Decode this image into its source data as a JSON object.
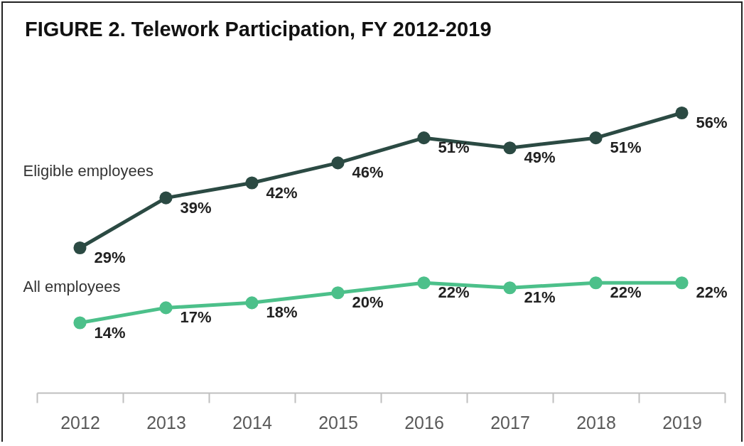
{
  "chart_data": {
    "type": "line",
    "title": "FIGURE 2. Telework Participation, FY 2012-2019",
    "categories": [
      "2012",
      "2013",
      "2014",
      "2015",
      "2016",
      "2017",
      "2018",
      "2019"
    ],
    "series": [
      {
        "name": "Eligible employees",
        "color": "#2b4a43",
        "values": [
          29,
          39,
          42,
          46,
          51,
          49,
          51,
          56
        ],
        "value_labels": [
          "29%",
          "39%",
          "42%",
          "46%",
          "51%",
          "49%",
          "51%",
          "56%"
        ]
      },
      {
        "name": "All employees",
        "color": "#4cc08a",
        "values": [
          14,
          17,
          18,
          20,
          22,
          21,
          22,
          22
        ],
        "value_labels": [
          "14%",
          "17%",
          "18%",
          "20%",
          "22%",
          "21%",
          "22%",
          "22%"
        ]
      }
    ],
    "tick_labels": "x",
    "marker": "circle",
    "line_style": "solid"
  }
}
